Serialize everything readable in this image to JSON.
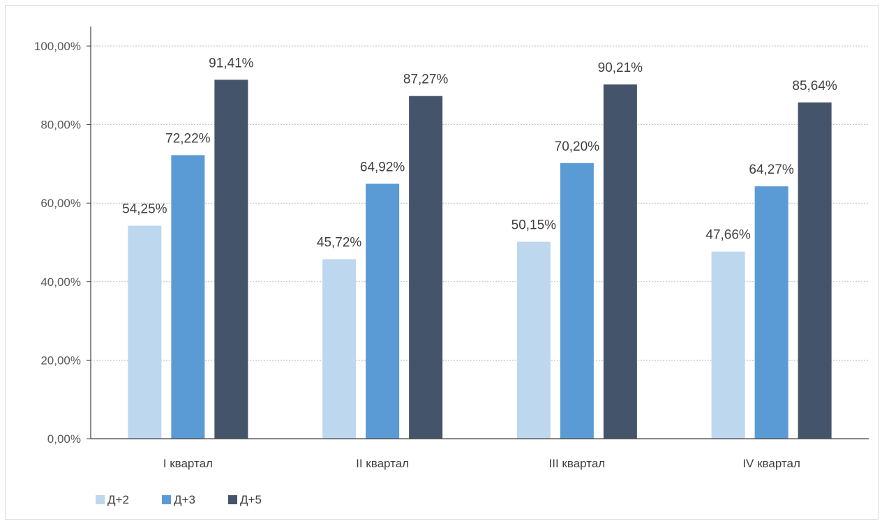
{
  "chart_data": {
    "type": "bar",
    "title": "",
    "xlabel": "",
    "ylabel": "",
    "categories": [
      "I квартал",
      "II квартал",
      "III квартал",
      "IV квартал"
    ],
    "series": [
      {
        "name": "Д+2",
        "color": "#bdd7ee",
        "values": [
          54.25,
          45.72,
          50.15,
          47.66
        ],
        "labels": [
          "54,25%",
          "45,72%",
          "50,15%",
          "47,66%"
        ]
      },
      {
        "name": "Д+3",
        "color": "#5b9bd5",
        "values": [
          72.22,
          64.92,
          70.2,
          64.27
        ],
        "labels": [
          "72,22%",
          "64,92%",
          "70,20%",
          "64,27%"
        ]
      },
      {
        "name": "Д+5",
        "color": "#44546a",
        "values": [
          91.41,
          87.27,
          90.21,
          85.64
        ],
        "labels": [
          "91,41%",
          "87,27%",
          "90,21%",
          "85,64%"
        ]
      }
    ],
    "ylim": [
      0,
      100
    ],
    "yticks": [
      0,
      20,
      40,
      60,
      80,
      100
    ],
    "ytick_labels": [
      "0,00%",
      "20,00%",
      "40,00%",
      "60,00%",
      "80,00%",
      "100,00%"
    ],
    "grid": true,
    "grid_style": "dotted",
    "legend_position": "bottom-left"
  }
}
